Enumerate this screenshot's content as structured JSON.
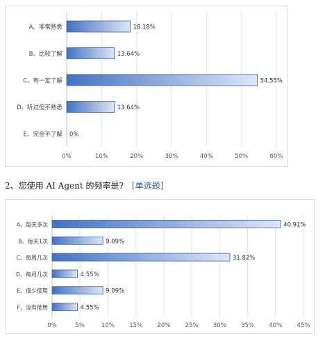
{
  "question2": {
    "title": "2、您使用 AI Agent 的频率是?",
    "tag": "[单选题]"
  },
  "chart_data": [
    {
      "type": "bar",
      "orientation": "horizontal",
      "categories": [
        "A、非常熟悉",
        "B、比较了解",
        "C、有一定了解",
        "D、听过但不熟悉",
        "E、完全不了解"
      ],
      "values": [
        18.18,
        13.64,
        54.55,
        13.64,
        0
      ],
      "value_labels": [
        "18.18%",
        "13.64%",
        "54.55%",
        "13.64%",
        "0%"
      ],
      "xlim": [
        0,
        60
      ],
      "xticks": [
        "0%",
        "10%",
        "20%",
        "30%",
        "40%",
        "50%",
        "60%"
      ],
      "grid": true,
      "bar_color": "#4472c4"
    },
    {
      "type": "bar",
      "orientation": "horizontal",
      "categories": [
        "A、每天多次",
        "B、每天1次",
        "C、每周几次",
        "D、每月几次",
        "E、很少使用",
        "F、没有使用"
      ],
      "values": [
        40.91,
        9.09,
        31.82,
        4.55,
        9.09,
        4.55
      ],
      "value_labels": [
        "40.91%",
        "9.09%",
        "31.82%",
        "4.55%",
        "9.09%",
        "4.55%"
      ],
      "xlim": [
        0,
        45
      ],
      "xticks": [
        "0%",
        "5%",
        "10%",
        "15%",
        "20%",
        "25%",
        "30%",
        "35%",
        "40%",
        "45%"
      ],
      "grid": true,
      "bar_color": "#4472c4"
    }
  ]
}
